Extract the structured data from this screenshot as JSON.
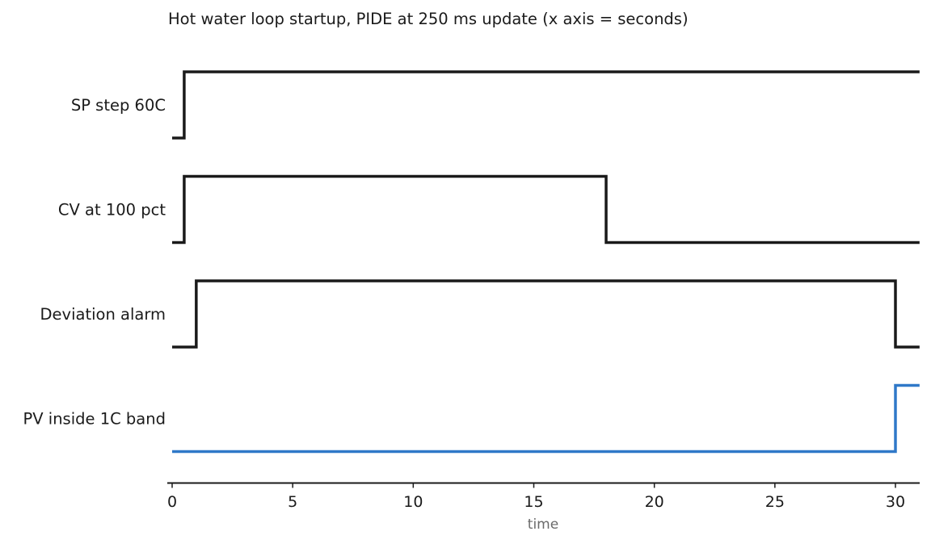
{
  "chart_data": {
    "type": "line",
    "subtype": "timing-diagram",
    "title": "Hot water loop startup, PIDE at 250 ms update (x axis = seconds)",
    "xlabel": "time",
    "ylabel": "",
    "xlim": [
      0,
      31
    ],
    "xticks": [
      0,
      5,
      10,
      15,
      20,
      25,
      30
    ],
    "grid": false,
    "legend": "none",
    "series": [
      {
        "name": "SP step 60C",
        "color": "#1a1a1a",
        "steps": [
          [
            0,
            0
          ],
          [
            0.5,
            1
          ],
          [
            31,
            1
          ]
        ]
      },
      {
        "name": "CV at 100 pct",
        "color": "#1a1a1a",
        "steps": [
          [
            0,
            0
          ],
          [
            0.5,
            1
          ],
          [
            18,
            0
          ],
          [
            31,
            0
          ]
        ]
      },
      {
        "name": "Deviation alarm",
        "color": "#1a1a1a",
        "steps": [
          [
            0,
            0
          ],
          [
            1,
            1
          ],
          [
            30,
            0
          ],
          [
            31,
            0
          ]
        ]
      },
      {
        "name": "PV inside 1C band",
        "color": "#2f78c8",
        "steps": [
          [
            0,
            0
          ],
          [
            30,
            1
          ],
          [
            31,
            1
          ]
        ]
      }
    ]
  }
}
